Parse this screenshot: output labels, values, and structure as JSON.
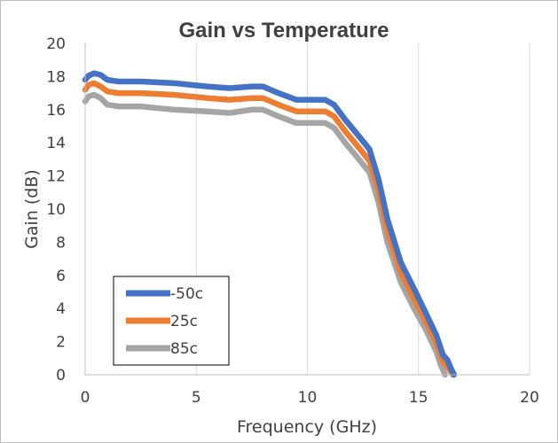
{
  "chart_data": {
    "type": "line",
    "title": "Gain vs Temperature",
    "xlabel": "Frequency (GHz)",
    "ylabel": "Gain (dB)",
    "xlim": [
      0,
      20
    ],
    "ylim": [
      0,
      20
    ],
    "xticks": [
      0,
      5,
      10,
      15,
      20
    ],
    "yticks": [
      0,
      2,
      4,
      6,
      8,
      10,
      12,
      14,
      16,
      18,
      20
    ],
    "grid": {
      "vertical": true,
      "horizontal": false
    },
    "legend_position": "bottom-left",
    "series": [
      {
        "name": "-50c",
        "color": "#4472c4",
        "x": [
          0.0,
          0.15,
          0.4,
          0.7,
          1.0,
          1.5,
          2.5,
          4.0,
          5.5,
          6.5,
          7.5,
          8.0,
          8.7,
          9.5,
          10.2,
          10.8,
          11.2,
          11.7,
          12.2,
          12.8,
          13.2,
          13.6,
          14.2,
          14.8,
          15.3,
          15.8,
          16.1,
          16.3,
          16.45,
          16.6
        ],
        "y": [
          17.8,
          18.05,
          18.2,
          18.1,
          17.8,
          17.7,
          17.7,
          17.6,
          17.4,
          17.3,
          17.4,
          17.4,
          17.0,
          16.6,
          16.6,
          16.6,
          16.3,
          15.4,
          14.6,
          13.6,
          11.8,
          9.4,
          6.8,
          5.2,
          3.8,
          2.4,
          1.2,
          0.9,
          0.4,
          0.0
        ]
      },
      {
        "name": "25c",
        "color": "#ed7d31",
        "x": [
          0.0,
          0.15,
          0.4,
          0.7,
          1.0,
          1.5,
          2.5,
          4.0,
          5.5,
          6.5,
          7.5,
          8.0,
          8.7,
          9.5,
          10.2,
          10.8,
          11.2,
          11.7,
          12.2,
          12.8,
          13.2,
          13.6,
          14.2,
          14.8,
          15.3,
          15.8,
          16.1,
          16.3,
          16.45,
          16.55
        ],
        "y": [
          17.2,
          17.5,
          17.6,
          17.4,
          17.1,
          17.0,
          17.0,
          16.9,
          16.7,
          16.6,
          16.7,
          16.7,
          16.3,
          15.9,
          15.9,
          15.9,
          15.6,
          14.7,
          13.9,
          12.9,
          11.1,
          8.7,
          6.2,
          4.6,
          3.3,
          1.9,
          0.8,
          0.5,
          0.2,
          0.0
        ]
      },
      {
        "name": "85c",
        "color": "#a5a5a5",
        "x": [
          0.0,
          0.15,
          0.4,
          0.7,
          1.0,
          1.5,
          2.5,
          4.0,
          5.5,
          6.5,
          7.5,
          8.0,
          8.7,
          9.5,
          10.2,
          10.8,
          11.2,
          11.7,
          12.2,
          12.8,
          13.2,
          13.6,
          14.2,
          14.8,
          15.3,
          15.8,
          16.0,
          16.2
        ],
        "y": [
          16.5,
          16.8,
          16.9,
          16.7,
          16.3,
          16.2,
          16.2,
          16.0,
          15.9,
          15.8,
          16.0,
          16.0,
          15.6,
          15.2,
          15.2,
          15.2,
          14.9,
          14.0,
          13.2,
          12.2,
          10.4,
          8.0,
          5.6,
          4.0,
          2.8,
          1.4,
          0.6,
          0.0
        ]
      }
    ]
  }
}
